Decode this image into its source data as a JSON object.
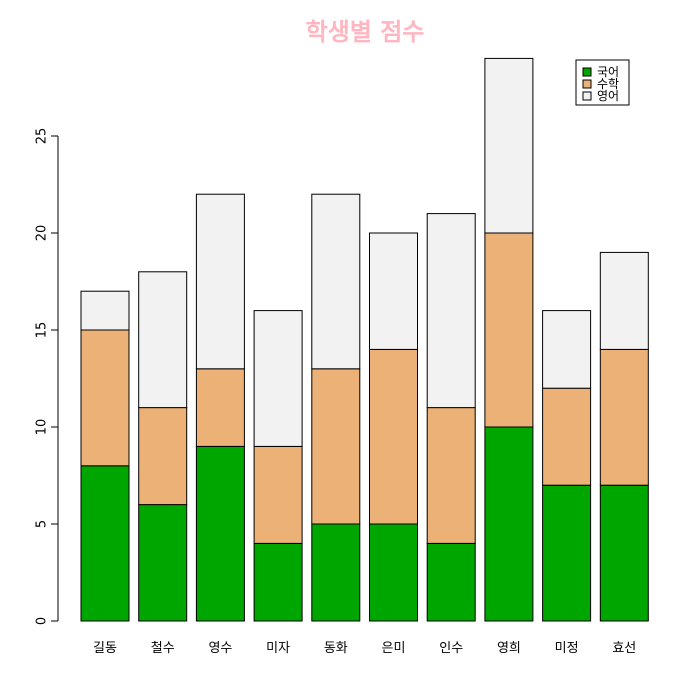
{
  "chart_data": {
    "type": "bar",
    "stacked": true,
    "title": "학생별 점수",
    "title_color": "#FFB6C1",
    "categories": [
      "길동",
      "철수",
      "영수",
      "미자",
      "동화",
      "은미",
      "인수",
      "영희",
      "미정",
      "효선"
    ],
    "series": [
      {
        "name": "국어",
        "color": "#00A600",
        "values": [
          8,
          6,
          9,
          4,
          5,
          5,
          4,
          10,
          7,
          7
        ]
      },
      {
        "name": "수학",
        "color": "#ECB176",
        "values": [
          7,
          5,
          4,
          5,
          8,
          9,
          7,
          10,
          5,
          7
        ]
      },
      {
        "name": "영어",
        "color": "#F2F2F2",
        "values": [
          2,
          7,
          9,
          7,
          9,
          6,
          10,
          9,
          4,
          5
        ]
      }
    ],
    "ylim": [
      0,
      29
    ],
    "yticks": [
      0,
      5,
      10,
      15,
      20,
      25
    ],
    "xlabel": "",
    "ylabel": "",
    "grid": false,
    "legend_position": "top-right"
  }
}
